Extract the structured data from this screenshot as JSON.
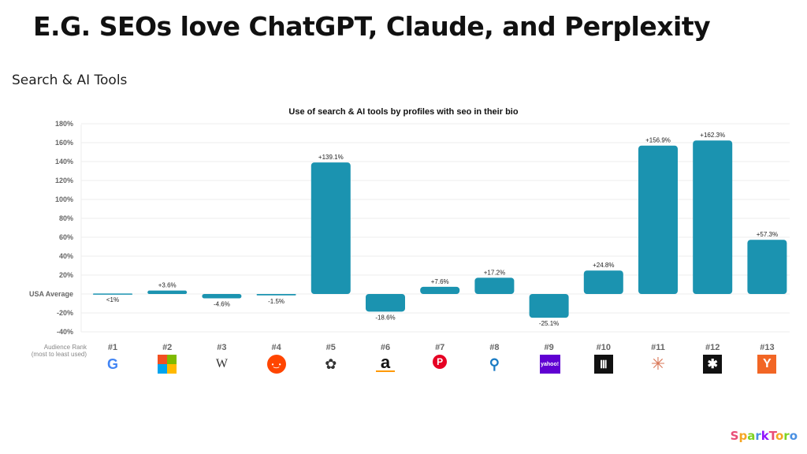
{
  "header": {
    "title": "E.G. SEOs love ChatGPT, Claude, and Perplexity",
    "subtitle": "Search & AI Tools"
  },
  "logo_text": "SparkToro",
  "chart_data": {
    "type": "bar",
    "title": "Use of search & AI tools by profiles with seo in their bio",
    "ylim": [
      -40,
      180
    ],
    "yticks": [
      {
        "v": 180,
        "label": "180%"
      },
      {
        "v": 160,
        "label": "160%"
      },
      {
        "v": 140,
        "label": "140%"
      },
      {
        "v": 120,
        "label": "120%"
      },
      {
        "v": 100,
        "label": "100%"
      },
      {
        "v": 80,
        "label": "80%"
      },
      {
        "v": 60,
        "label": "60%"
      },
      {
        "v": 40,
        "label": "40%"
      },
      {
        "v": 20,
        "label": "20%"
      },
      {
        "v": 0,
        "label": "USA Average"
      },
      {
        "v": -20,
        "label": "-20%"
      },
      {
        "v": -40,
        "label": "-40%"
      }
    ],
    "xaxis_label": [
      "Audience Rank",
      "(most to least used)"
    ],
    "categories": [
      "#1",
      "#2",
      "#3",
      "#4",
      "#5",
      "#6",
      "#7",
      "#8",
      "#9",
      "#10",
      "#11",
      "#12",
      "#13"
    ],
    "tools": [
      "google",
      "microsoft-bing",
      "wikipedia",
      "reddit",
      "chatgpt",
      "amazon",
      "pinterest",
      "search",
      "yahoo",
      "library",
      "claude",
      "perplexity",
      "y-combinator"
    ],
    "values": [
      0.5,
      3.6,
      -4.6,
      -1.5,
      139.1,
      -18.6,
      7.6,
      17.2,
      -25.1,
      24.8,
      156.9,
      162.3,
      57.3
    ],
    "labels": [
      "<1%",
      "+3.6%",
      "-4.6%",
      "-1.5%",
      "+139.1%",
      "-18.6%",
      "+7.6%",
      "+17.2%",
      "-25.1%",
      "+24.8%",
      "+156.9%",
      "+162.3%",
      "+57.3%"
    ],
    "bar_color": "#1b93b0"
  }
}
